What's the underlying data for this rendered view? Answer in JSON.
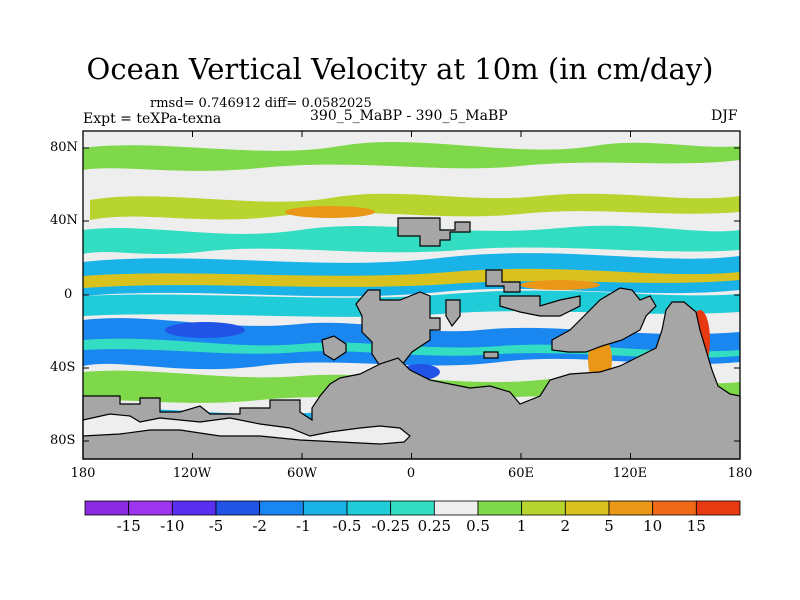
{
  "title": "Ocean Vertical Velocity at 10m (in cm/day)",
  "stats": "rmsd= 0.746912 diff= 0.0582025",
  "experiment": "Expt = teXPa-texna",
  "cases": "390_5_MaBP - 390_5_MaBP",
  "season": "DJF",
  "map": {
    "lat_ticks": [
      "80N",
      "40N",
      "0",
      "40S",
      "80S"
    ],
    "lon_ticks": [
      "180",
      "120W",
      "60W",
      "0",
      "60E",
      "120E",
      "180"
    ],
    "land_color": "#a6a6a6"
  },
  "colorbar": {
    "labels": [
      "-15",
      "-10",
      "-5",
      "-2",
      "-1",
      "-0.5",
      "-0.25",
      "0.25",
      "0.5",
      "1",
      "2",
      "5",
      "10",
      "15"
    ],
    "colors": [
      "#9d35ef",
      "#5b2ff0",
      "#2153e6",
      "#1a86f0",
      "#19b3e8",
      "#1fccd8",
      "#33ddc1",
      "#eeeeee",
      "#7fd84a",
      "#b8d42e",
      "#d9c21e",
      "#ea9718",
      "#ee6a16",
      "#e83a12"
    ]
  }
}
